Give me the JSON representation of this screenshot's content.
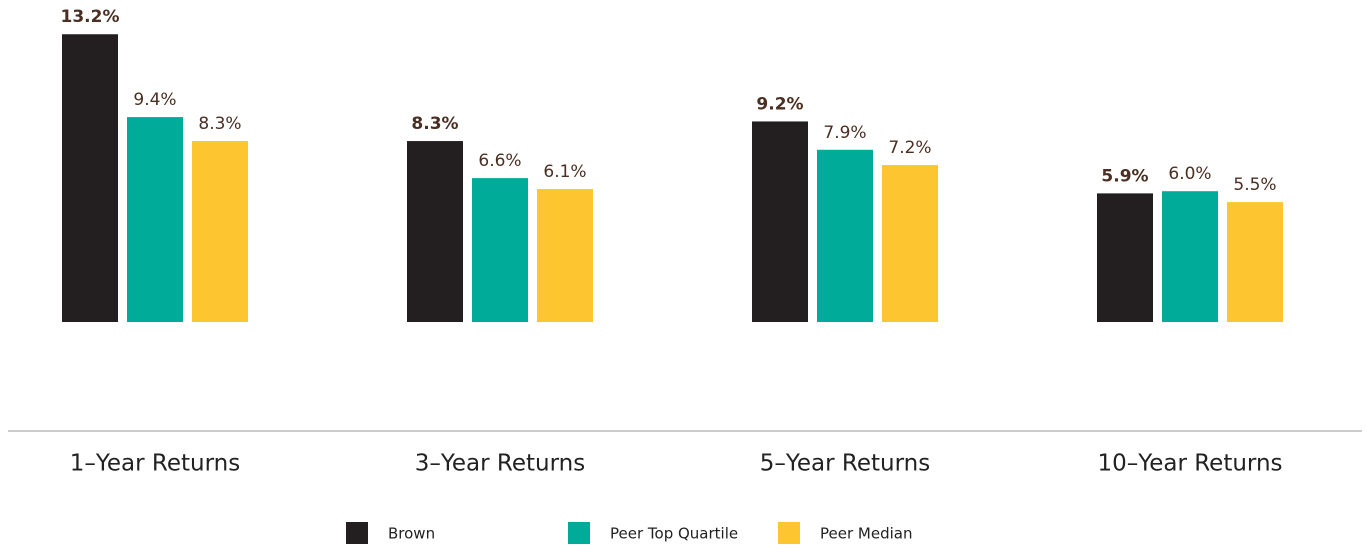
{
  "chart_data": {
    "type": "bar",
    "categories": [
      "1–Year Returns",
      "3–Year Returns",
      "5–Year Returns",
      "10–Year Returns"
    ],
    "series": [
      {
        "name": "Brown",
        "color": "#231f20",
        "values": [
          13.2,
          8.3,
          9.2,
          5.9
        ],
        "value_labels": [
          "13.2%",
          "8.3%",
          "9.2%",
          "5.9%"
        ]
      },
      {
        "name": "Peer Top Quartile",
        "color": "#00ab9a",
        "values": [
          9.4,
          6.6,
          7.9,
          6.0
        ],
        "value_labels": [
          "9.4%",
          "6.6%",
          "7.9%",
          "6.0%"
        ]
      },
      {
        "name": "Peer Median",
        "color": "#fdc530",
        "values": [
          8.3,
          6.1,
          7.2,
          5.5
        ],
        "value_labels": [
          "8.3%",
          "6.1%",
          "7.2%",
          "5.5%"
        ]
      }
    ],
    "ylim": [
      -5,
      15
    ],
    "grid": false,
    "legend": "bottom"
  }
}
